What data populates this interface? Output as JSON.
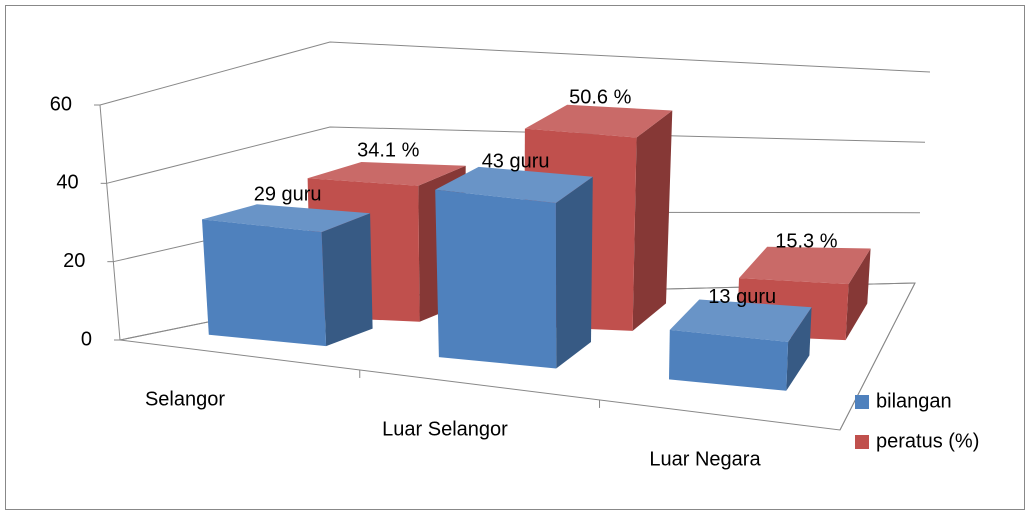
{
  "chart_data": {
    "type": "bar3d",
    "categories": [
      "Selangor",
      "Luar Selangor",
      "Luar Negara"
    ],
    "series": [
      {
        "name": "bilangan",
        "color": "#4f81bd",
        "values": [
          29,
          43,
          13
        ],
        "value_labels": [
          "29 guru",
          "43 guru",
          "13 guru"
        ]
      },
      {
        "name": "peratus (%)",
        "color": "#c0504d",
        "values": [
          34.1,
          50.6,
          15.3
        ],
        "value_labels": [
          "34.1 %",
          "50.6 %",
          "15.3 %"
        ]
      }
    ],
    "ylim": [
      0,
      60
    ],
    "yticks": [
      0,
      20,
      40,
      60
    ],
    "grid": true,
    "legend": "right"
  }
}
